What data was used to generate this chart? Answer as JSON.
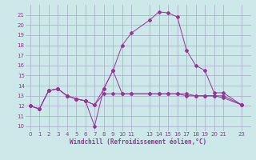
{
  "xlabel": "Windchill (Refroidissement éolien,°C)",
  "bg_color": "#cce8e8",
  "grid_color": "#aaaacc",
  "line_color": "#993399",
  "xlim": [
    -0.5,
    24
  ],
  "ylim": [
    9.5,
    22
  ],
  "xticks": [
    0,
    1,
    2,
    3,
    4,
    5,
    6,
    7,
    8,
    9,
    10,
    11,
    13,
    14,
    15,
    16,
    17,
    18,
    19,
    20,
    21,
    23
  ],
  "yticks": [
    10,
    11,
    12,
    13,
    14,
    15,
    16,
    17,
    18,
    19,
    20,
    21
  ],
  "series2_x": [
    0,
    1,
    2,
    3,
    4,
    5,
    6,
    7,
    8,
    9,
    10,
    11,
    13,
    14,
    15,
    16,
    17,
    18,
    19,
    20,
    21,
    23
  ],
  "series2_y": [
    12.0,
    11.7,
    13.5,
    13.7,
    13.0,
    12.7,
    12.5,
    10.0,
    13.7,
    15.5,
    18.0,
    19.2,
    20.5,
    21.3,
    21.2,
    20.8,
    17.5,
    16.0,
    15.5,
    13.3,
    13.3,
    12.1
  ],
  "series1_x": [
    0,
    1,
    2,
    3,
    4,
    5,
    6,
    7,
    8,
    9,
    10,
    11,
    13,
    14,
    15,
    16,
    17,
    18,
    19,
    20,
    21,
    23
  ],
  "series1_y": [
    12.0,
    11.7,
    13.5,
    13.7,
    13.0,
    12.7,
    12.5,
    12.1,
    13.7,
    15.5,
    13.2,
    13.2,
    13.2,
    13.2,
    13.2,
    13.2,
    13.2,
    13.0,
    13.0,
    13.0,
    13.0,
    12.1
  ],
  "series3_x": [
    0,
    1,
    2,
    3,
    4,
    5,
    6,
    7,
    8,
    9,
    10,
    11,
    13,
    14,
    15,
    16,
    17,
    18,
    19,
    20,
    21,
    23
  ],
  "series3_y": [
    12.0,
    11.7,
    13.5,
    13.7,
    13.0,
    12.7,
    12.5,
    12.1,
    13.2,
    13.2,
    13.2,
    13.2,
    13.2,
    13.2,
    13.2,
    13.2,
    13.0,
    13.0,
    13.0,
    13.0,
    12.8,
    12.1
  ]
}
